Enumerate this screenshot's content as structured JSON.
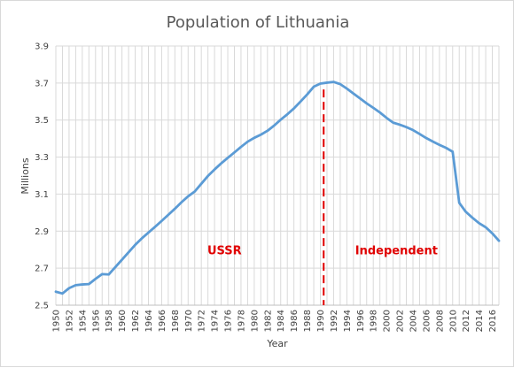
{
  "chart_data": {
    "type": "line",
    "title": "Population of Lithuania",
    "xlabel": "Year",
    "ylabel": "Millions",
    "xlim": [
      1950,
      2017
    ],
    "ylim": [
      2.5,
      3.9
    ],
    "yticks": [
      2.5,
      2.7,
      2.9,
      3.1,
      3.3,
      3.5,
      3.7,
      3.9
    ],
    "ytick_labels": [
      "2.5",
      "2.7",
      "2.9",
      "3.1",
      "3.3",
      "3.5",
      "3.7",
      "3.9"
    ],
    "xticks": [
      1950,
      1952,
      1954,
      1956,
      1958,
      1960,
      1962,
      1964,
      1966,
      1968,
      1970,
      1972,
      1974,
      1976,
      1978,
      1980,
      1982,
      1984,
      1986,
      1988,
      1990,
      1992,
      1994,
      1996,
      1998,
      2000,
      2002,
      2004,
      2006,
      2008,
      2010,
      2012,
      2014,
      2016
    ],
    "xtick_labels": [
      "1950",
      "1952",
      "1954",
      "1956",
      "1958",
      "1960",
      "1962",
      "1964",
      "1966",
      "1968",
      "1970",
      "1972",
      "1974",
      "1976",
      "1978",
      "1980",
      "1982",
      "1984",
      "1986",
      "1988",
      "1990",
      "1992",
      "1994",
      "1996",
      "1998",
      "2000",
      "2002",
      "2004",
      "2006",
      "2008",
      "2010",
      "2012",
      "2014",
      "2016"
    ],
    "grid": true,
    "line_color": "#5b9bd5",
    "series": [
      {
        "x": [
          1950,
          1951,
          1952,
          1953,
          1954,
          1955,
          1956,
          1957,
          1958,
          1959,
          1960,
          1961,
          1962,
          1963,
          1964,
          1965,
          1966,
          1967,
          1968,
          1969,
          1970,
          1971,
          1972,
          1973,
          1974,
          1975,
          1976,
          1977,
          1978,
          1979,
          1980,
          1981,
          1982,
          1983,
          1984,
          1985,
          1986,
          1987,
          1988,
          1989,
          1990,
          1991,
          1992,
          1993,
          1994,
          1995,
          1996,
          1997,
          1998,
          1999,
          2000,
          2001,
          2002,
          2003,
          2004,
          2005,
          2006,
          2007,
          2008,
          2009,
          2010,
          2011,
          2012,
          2013,
          2014,
          2015,
          2016,
          2017
        ],
        "values": [
          2.573,
          2.563,
          2.592,
          2.608,
          2.612,
          2.614,
          2.642,
          2.668,
          2.666,
          2.706,
          2.746,
          2.786,
          2.826,
          2.861,
          2.892,
          2.923,
          2.955,
          2.988,
          3.021,
          3.056,
          3.088,
          3.114,
          3.156,
          3.198,
          3.233,
          3.266,
          3.296,
          3.325,
          3.355,
          3.383,
          3.404,
          3.421,
          3.442,
          3.47,
          3.502,
          3.531,
          3.563,
          3.6,
          3.638,
          3.68,
          3.697,
          3.702,
          3.706,
          3.694,
          3.67,
          3.643,
          3.617,
          3.59,
          3.566,
          3.541,
          3.512,
          3.486,
          3.475,
          3.462,
          3.446,
          3.425,
          3.403,
          3.384,
          3.366,
          3.35,
          3.329,
          3.053,
          3.004,
          2.972,
          2.943,
          2.921,
          2.888,
          2.848
        ]
      }
    ],
    "reference_line": {
      "x": 1990.5,
      "color": "#e00000",
      "style": "dashed"
    },
    "annotations": [
      {
        "text": "USSR",
        "x": 1975.5,
        "y": 2.775
      },
      {
        "text": "Independent",
        "x": 2001.5,
        "y": 2.775
      }
    ]
  }
}
